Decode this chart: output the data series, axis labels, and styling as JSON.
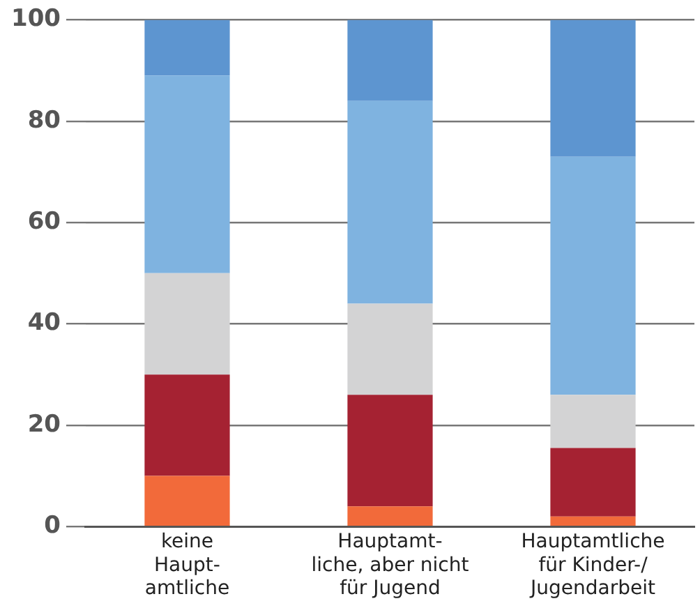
{
  "chart_data": {
    "type": "bar",
    "stacked": true,
    "categories": [
      "keine\nHaupt-\namtliche",
      "Hauptamt-\nliche, aber nicht\nfür Jugend",
      "Hauptamtliche\nfür Kinder-/\nJugendarbeit"
    ],
    "series": [
      {
        "color": "#f26a3a",
        "values": [
          10,
          4,
          2
        ]
      },
      {
        "color": "#a52232",
        "values": [
          20,
          22,
          13.5
        ]
      },
      {
        "color": "#d3d3d4",
        "values": [
          20,
          18,
          10.5
        ]
      },
      {
        "color": "#7fb3e0",
        "values": [
          39,
          40,
          47
        ]
      },
      {
        "color": "#5d95d0",
        "values": [
          11,
          16,
          27
        ]
      }
    ],
    "ylim": [
      0,
      100
    ],
    "yticks": [
      0,
      20,
      40,
      60,
      80,
      100
    ],
    "grid": "y",
    "legend": false
  }
}
